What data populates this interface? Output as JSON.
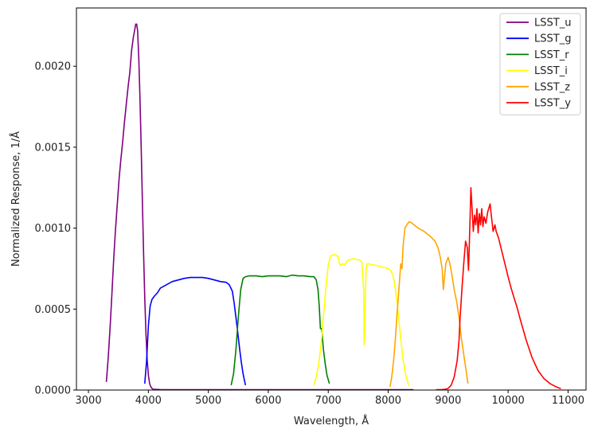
{
  "chart_data": {
    "type": "line",
    "xlabel": "Wavelength, Å",
    "ylabel": "Normalized Response, 1/Å",
    "xlim": [
      2800,
      11300
    ],
    "ylim": [
      0,
      0.00236
    ],
    "xticks": [
      3000,
      4000,
      5000,
      6000,
      7000,
      8000,
      9000,
      10000,
      11000
    ],
    "xtick_labels": [
      "3000",
      "4000",
      "5000",
      "6000",
      "7000",
      "8000",
      "9000",
      "10000",
      "11000"
    ],
    "yticks": [
      0,
      0.0005,
      0.001,
      0.0015,
      0.002
    ],
    "ytick_labels": [
      "0.0000",
      "0.0005",
      "0.0010",
      "0.0015",
      "0.0020"
    ],
    "grid": false,
    "legend_position": "top-right",
    "series": [
      {
        "name": "LSST_u",
        "color": "#800080",
        "x": [
          3300,
          3330,
          3360,
          3390,
          3420,
          3450,
          3480,
          3510,
          3540,
          3570,
          3600,
          3630,
          3660,
          3690,
          3720,
          3750,
          3770,
          3790,
          3805,
          3820,
          3840,
          3860,
          3880,
          3900,
          3920,
          3940,
          3960,
          3980,
          4000,
          4020,
          4040,
          4060,
          4080,
          4200,
          5000,
          6000,
          7000,
          8000,
          8420
        ],
        "y": [
          5e-05,
          0.0002,
          0.00038,
          0.00058,
          0.0008,
          0.00098,
          0.00114,
          0.0013,
          0.00142,
          0.00153,
          0.00165,
          0.00176,
          0.00187,
          0.00196,
          0.0021,
          0.00218,
          0.00222,
          0.00226,
          0.00226,
          0.00222,
          0.00205,
          0.0018,
          0.0015,
          0.00117,
          0.00085,
          0.00057,
          0.00035,
          0.00019,
          9e-05,
          4e-05,
          2e-05,
          1e-05,
          5e-06,
          3e-06,
          2e-06,
          2e-06,
          2e-06,
          2e-06,
          2e-06
        ]
      },
      {
        "name": "LSST_g",
        "color": "#0000ff",
        "x": [
          3940,
          3970,
          4000,
          4030,
          4060,
          4100,
          4150,
          4200,
          4300,
          4400,
          4500,
          4600,
          4700,
          4800,
          4900,
          5000,
          5100,
          5200,
          5300,
          5350,
          5400,
          5430,
          5460,
          5490,
          5520,
          5550,
          5580,
          5620
        ],
        "y": [
          4e-05,
          0.00018,
          0.0004,
          0.00052,
          0.00056,
          0.00058,
          0.0006,
          0.00063,
          0.00065,
          0.00067,
          0.00068,
          0.00069,
          0.000695,
          0.000695,
          0.000695,
          0.00069,
          0.00068,
          0.00067,
          0.000665,
          0.00065,
          0.00061,
          0.00054,
          0.00045,
          0.00036,
          0.00026,
          0.00017,
          0.0001,
          3e-05
        ]
      },
      {
        "name": "LSST_r",
        "color": "#008000",
        "x": [
          5380,
          5420,
          5460,
          5500,
          5540,
          5580,
          5620,
          5680,
          5800,
          5900,
          6000,
          6100,
          6200,
          6300,
          6400,
          6500,
          6600,
          6700,
          6760,
          6800,
          6830,
          6850,
          6870,
          6890,
          6920,
          6950,
          6980,
          7020
        ],
        "y": [
          3e-05,
          0.0001,
          0.00025,
          0.00045,
          0.00062,
          0.00069,
          0.0007,
          0.000705,
          0.000705,
          0.0007,
          0.000705,
          0.000705,
          0.000705,
          0.0007,
          0.00071,
          0.000705,
          0.000705,
          0.0007,
          0.0007,
          0.00068,
          0.00062,
          0.00052,
          0.00038,
          0.00038,
          0.00025,
          0.00016,
          9e-05,
          4e-05
        ]
      },
      {
        "name": "LSST_i",
        "color": "#ffff00",
        "x": [
          6760,
          6800,
          6840,
          6880,
          6920,
          6960,
          7000,
          7040,
          7080,
          7120,
          7160,
          7200,
          7240,
          7280,
          7320,
          7360,
          7400,
          7440,
          7480,
          7520,
          7560,
          7590,
          7600,
          7610,
          7620,
          7630,
          7650,
          7680,
          7720,
          7800,
          7900,
          7960,
          8000,
          8040,
          8080,
          8120,
          8160,
          8200,
          8250,
          8300,
          8340
        ],
        "y": [
          3e-05,
          8e-05,
          0.00016,
          0.00028,
          0.00045,
          0.00063,
          0.00077,
          0.00083,
          0.000835,
          0.000835,
          0.000825,
          0.00077,
          0.00078,
          0.000775,
          0.0008,
          0.000805,
          0.00081,
          0.00081,
          0.000805,
          0.000805,
          0.00079,
          0.00062,
          0.00028,
          0.0004,
          0.0006,
          0.00075,
          0.00078,
          0.00078,
          0.000775,
          0.00077,
          0.00076,
          0.000755,
          0.00075,
          0.00074,
          0.00071,
          0.00062,
          0.0005,
          0.00035,
          0.00018,
          8e-05,
          3e-05
        ]
      },
      {
        "name": "LSST_z",
        "color": "#ffa500",
        "x": [
          8030,
          8060,
          8090,
          8120,
          8150,
          8180,
          8210,
          8230,
          8250,
          8280,
          8310,
          8350,
          8400,
          8500,
          8600,
          8700,
          8780,
          8830,
          8870,
          8900,
          8920,
          8960,
          9000,
          9030,
          9060,
          9100,
          9140,
          9180,
          9220,
          9260,
          9300,
          9330
        ],
        "y": [
          2e-05,
          8e-05,
          0.00018,
          0.00032,
          0.00048,
          0.00063,
          0.00078,
          0.00075,
          0.0009,
          0.001,
          0.00102,
          0.00104,
          0.00103,
          0.001,
          0.00098,
          0.00095,
          0.00092,
          0.00088,
          0.00082,
          0.00075,
          0.00062,
          0.00078,
          0.00082,
          0.00078,
          0.00072,
          0.00062,
          0.00055,
          0.00045,
          0.00032,
          0.00022,
          0.00012,
          4e-05
        ]
      },
      {
        "name": "LSST_y",
        "color": "#ff0000",
        "x": [
          8800,
          8900,
          8950,
          9000,
          9050,
          9100,
          9150,
          9180,
          9200,
          9230,
          9260,
          9290,
          9320,
          9340,
          9360,
          9380,
          9400,
          9420,
          9440,
          9460,
          9480,
          9500,
          9520,
          9540,
          9560,
          9580,
          9600,
          9630,
          9660,
          9700,
          9720,
          9750,
          9780,
          9800,
          9840,
          9880,
          9920,
          9960,
          10000,
          10050,
          10100,
          10150,
          10200,
          10300,
          10400,
          10500,
          10600,
          10700,
          10800,
          10880
        ],
        "y": [
          2e-06,
          3e-06,
          5e-06,
          1e-05,
          3e-05,
          8e-05,
          0.00018,
          0.0003,
          0.00045,
          0.00062,
          0.00078,
          0.00092,
          0.00088,
          0.00074,
          0.00098,
          0.00125,
          0.00112,
          0.00098,
          0.00108,
          0.00102,
          0.00112,
          0.00097,
          0.00109,
          0.00102,
          0.00112,
          0.00101,
          0.00107,
          0.00103,
          0.0011,
          0.00115,
          0.00108,
          0.00098,
          0.00102,
          0.00098,
          0.00094,
          0.00088,
          0.00082,
          0.00076,
          0.0007,
          0.00063,
          0.00057,
          0.00051,
          0.00044,
          0.00031,
          0.0002,
          0.00012,
          7e-05,
          4e-05,
          2e-05,
          8e-06
        ]
      }
    ]
  }
}
